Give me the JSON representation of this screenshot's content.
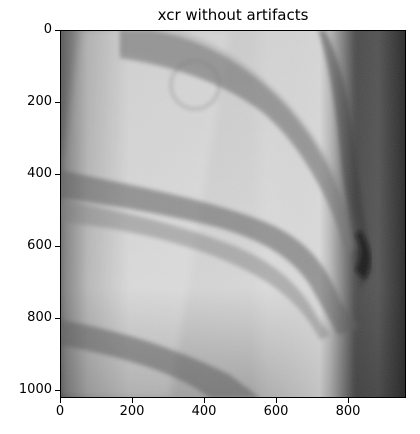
{
  "figure": {
    "title": "xcr without artifacts",
    "y_ticks": [
      "0",
      "200",
      "400",
      "600",
      "800",
      "1000"
    ],
    "x_ticks": [
      "0",
      "200",
      "400",
      "600",
      "800"
    ],
    "colormap": "gray",
    "image_description": "grayscale chest X-ray crop showing curved ribs"
  }
}
